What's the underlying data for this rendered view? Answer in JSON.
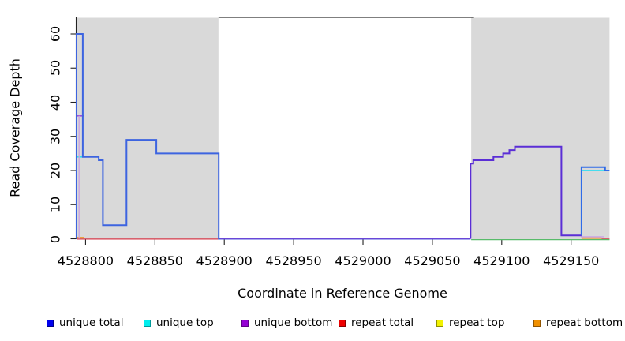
{
  "figure": {
    "y_axis": {
      "title": "Read Coverage Depth",
      "ticks": [
        "0",
        "10",
        "20",
        "30",
        "40",
        "50",
        "60"
      ],
      "tick_values": [
        0,
        10,
        20,
        30,
        40,
        50,
        60
      ]
    },
    "x_axis": {
      "title": "Coordinate in Reference Genome",
      "ticks": [
        "4528800",
        "4528850",
        "4528900",
        "4528950",
        "4529000",
        "4529050",
        "4529100",
        "4529150"
      ],
      "tick_values": [
        4528800,
        4528850,
        4528900,
        4528950,
        4529000,
        4529050,
        4529100,
        4529150
      ]
    },
    "legend": [
      {
        "label": "unique total",
        "fill": "#0000EE",
        "border": "#000088"
      },
      {
        "label": "unique top",
        "fill": "#00EEEE",
        "border": "#009999"
      },
      {
        "label": "unique bottom",
        "fill": "#9400D3",
        "border": "#5E0087"
      },
      {
        "label": "repeat total",
        "fill": "#EE0000",
        "border": "#880000"
      },
      {
        "label": "repeat top",
        "fill": "#F2F200",
        "border": "#909000"
      },
      {
        "label": "repeat bottom",
        "fill": "#F09000",
        "border": "#905400"
      }
    ]
  },
  "chart_data": {
    "type": "line",
    "title": "",
    "xlabel": "Coordinate in Reference Genome",
    "ylabel": "Read Coverage Depth",
    "x_range": [
      4528793.5,
      4529177.7
    ],
    "y_range": [
      0,
      65
    ],
    "grid": false,
    "legend_position": "bottom",
    "shaded_regions": {
      "color": "#D9D9D9",
      "spans": [
        [
          4528793.5,
          4528895.8
        ],
        [
          4529078.0,
          4529177.7
        ]
      ]
    },
    "gap_top_line": {
      "x1": 4528895.8,
      "x2": 4529080.0,
      "color": "#555555"
    },
    "series": [
      {
        "key": "repeat-total",
        "name": "repeat total",
        "color": "#D63A4A",
        "width": 1.3,
        "segments": [
          [
            4528793.5,
            4528896.0,
            -0.1
          ],
          [
            4529172.0,
            4529177.7,
            -0.1
          ]
        ]
      },
      {
        "key": "top-overlap-green",
        "name": "unique top / repeat top overlap at zero",
        "color": "#58BB6A",
        "width": 1.3,
        "segments": [
          [
            4529078.0,
            4529177.7,
            -0.25
          ]
        ]
      },
      {
        "key": "repeat-bottom",
        "name": "repeat bottom",
        "color": "#F08A00",
        "width": 1.8,
        "segments": [
          [
            4528793.5,
            4528799.0,
            0.3
          ],
          [
            4529157.5,
            4529172.0,
            0.2
          ]
        ]
      },
      {
        "key": "unique-bottom-faint",
        "name": "unique bottom (low)",
        "color": "#C9A3E8",
        "width": 1.4,
        "segments": [
          [
            4529157.0,
            4529174.0,
            0.6
          ]
        ]
      },
      {
        "key": "unique-top",
        "name": "unique top",
        "color": "#30DCF0",
        "width": 1.8,
        "segments": [
          [
            4528793.5,
            4528800.0,
            24
          ],
          [
            4529157.0,
            4529174.5,
            20
          ]
        ]
      },
      {
        "key": "unique-bottom-start",
        "name": "unique bottom (start)",
        "color": "#9A4FD8",
        "width": 1.6,
        "segments": [
          [
            4528793.5,
            4528799.0,
            36
          ]
        ]
      },
      {
        "key": "unique-total-left",
        "name": "unique total (left block)",
        "color": "#3D64E0",
        "width": 2,
        "start_y": 0,
        "segments": [
          [
            4528793.5,
            4528798.0,
            60
          ],
          [
            4528798.0,
            4528809.5,
            24
          ],
          [
            4528809.5,
            4528812.5,
            23
          ],
          [
            4528812.5,
            4528829.5,
            4
          ],
          [
            4528829.5,
            4528851.0,
            29
          ],
          [
            4528851.0,
            4528896.0,
            25
          ],
          [
            4528896.0,
            4529077.5,
            0
          ]
        ]
      },
      {
        "key": "unique-bottom-mid",
        "name": "unique bottom (middle, zero)",
        "color": "#6A46D8",
        "width": 1.4,
        "segments": [
          [
            4528897.0,
            4529077.5,
            0
          ]
        ]
      },
      {
        "key": "unique-bottom-right",
        "name": "unique bottom = unique total (right block)",
        "color": "#5B2ED6",
        "width": 2,
        "start_y": 0,
        "segments": [
          [
            4529077.5,
            4529079.5,
            22
          ],
          [
            4529079.5,
            4529094.0,
            23
          ],
          [
            4529094.0,
            4529101.0,
            24
          ],
          [
            4529101.0,
            4529105.5,
            25
          ],
          [
            4529105.5,
            4529109.5,
            26
          ],
          [
            4529109.5,
            4529143.0,
            27
          ],
          [
            4529143.0,
            4529157.5,
            1
          ]
        ]
      },
      {
        "key": "unique-total-right",
        "name": "unique total (right end)",
        "color": "#2F6BE8",
        "width": 2,
        "start_y": 1,
        "segments": [
          [
            4529157.5,
            4529174.5,
            21
          ],
          [
            4529174.5,
            4529177.7,
            20
          ]
        ]
      }
    ],
    "vlines": [
      {
        "name": "unique-bottom-drop",
        "x": 4528795.3,
        "y1": 0,
        "y2": 36,
        "color": "#CBA6E0",
        "width": 1.4
      }
    ]
  }
}
